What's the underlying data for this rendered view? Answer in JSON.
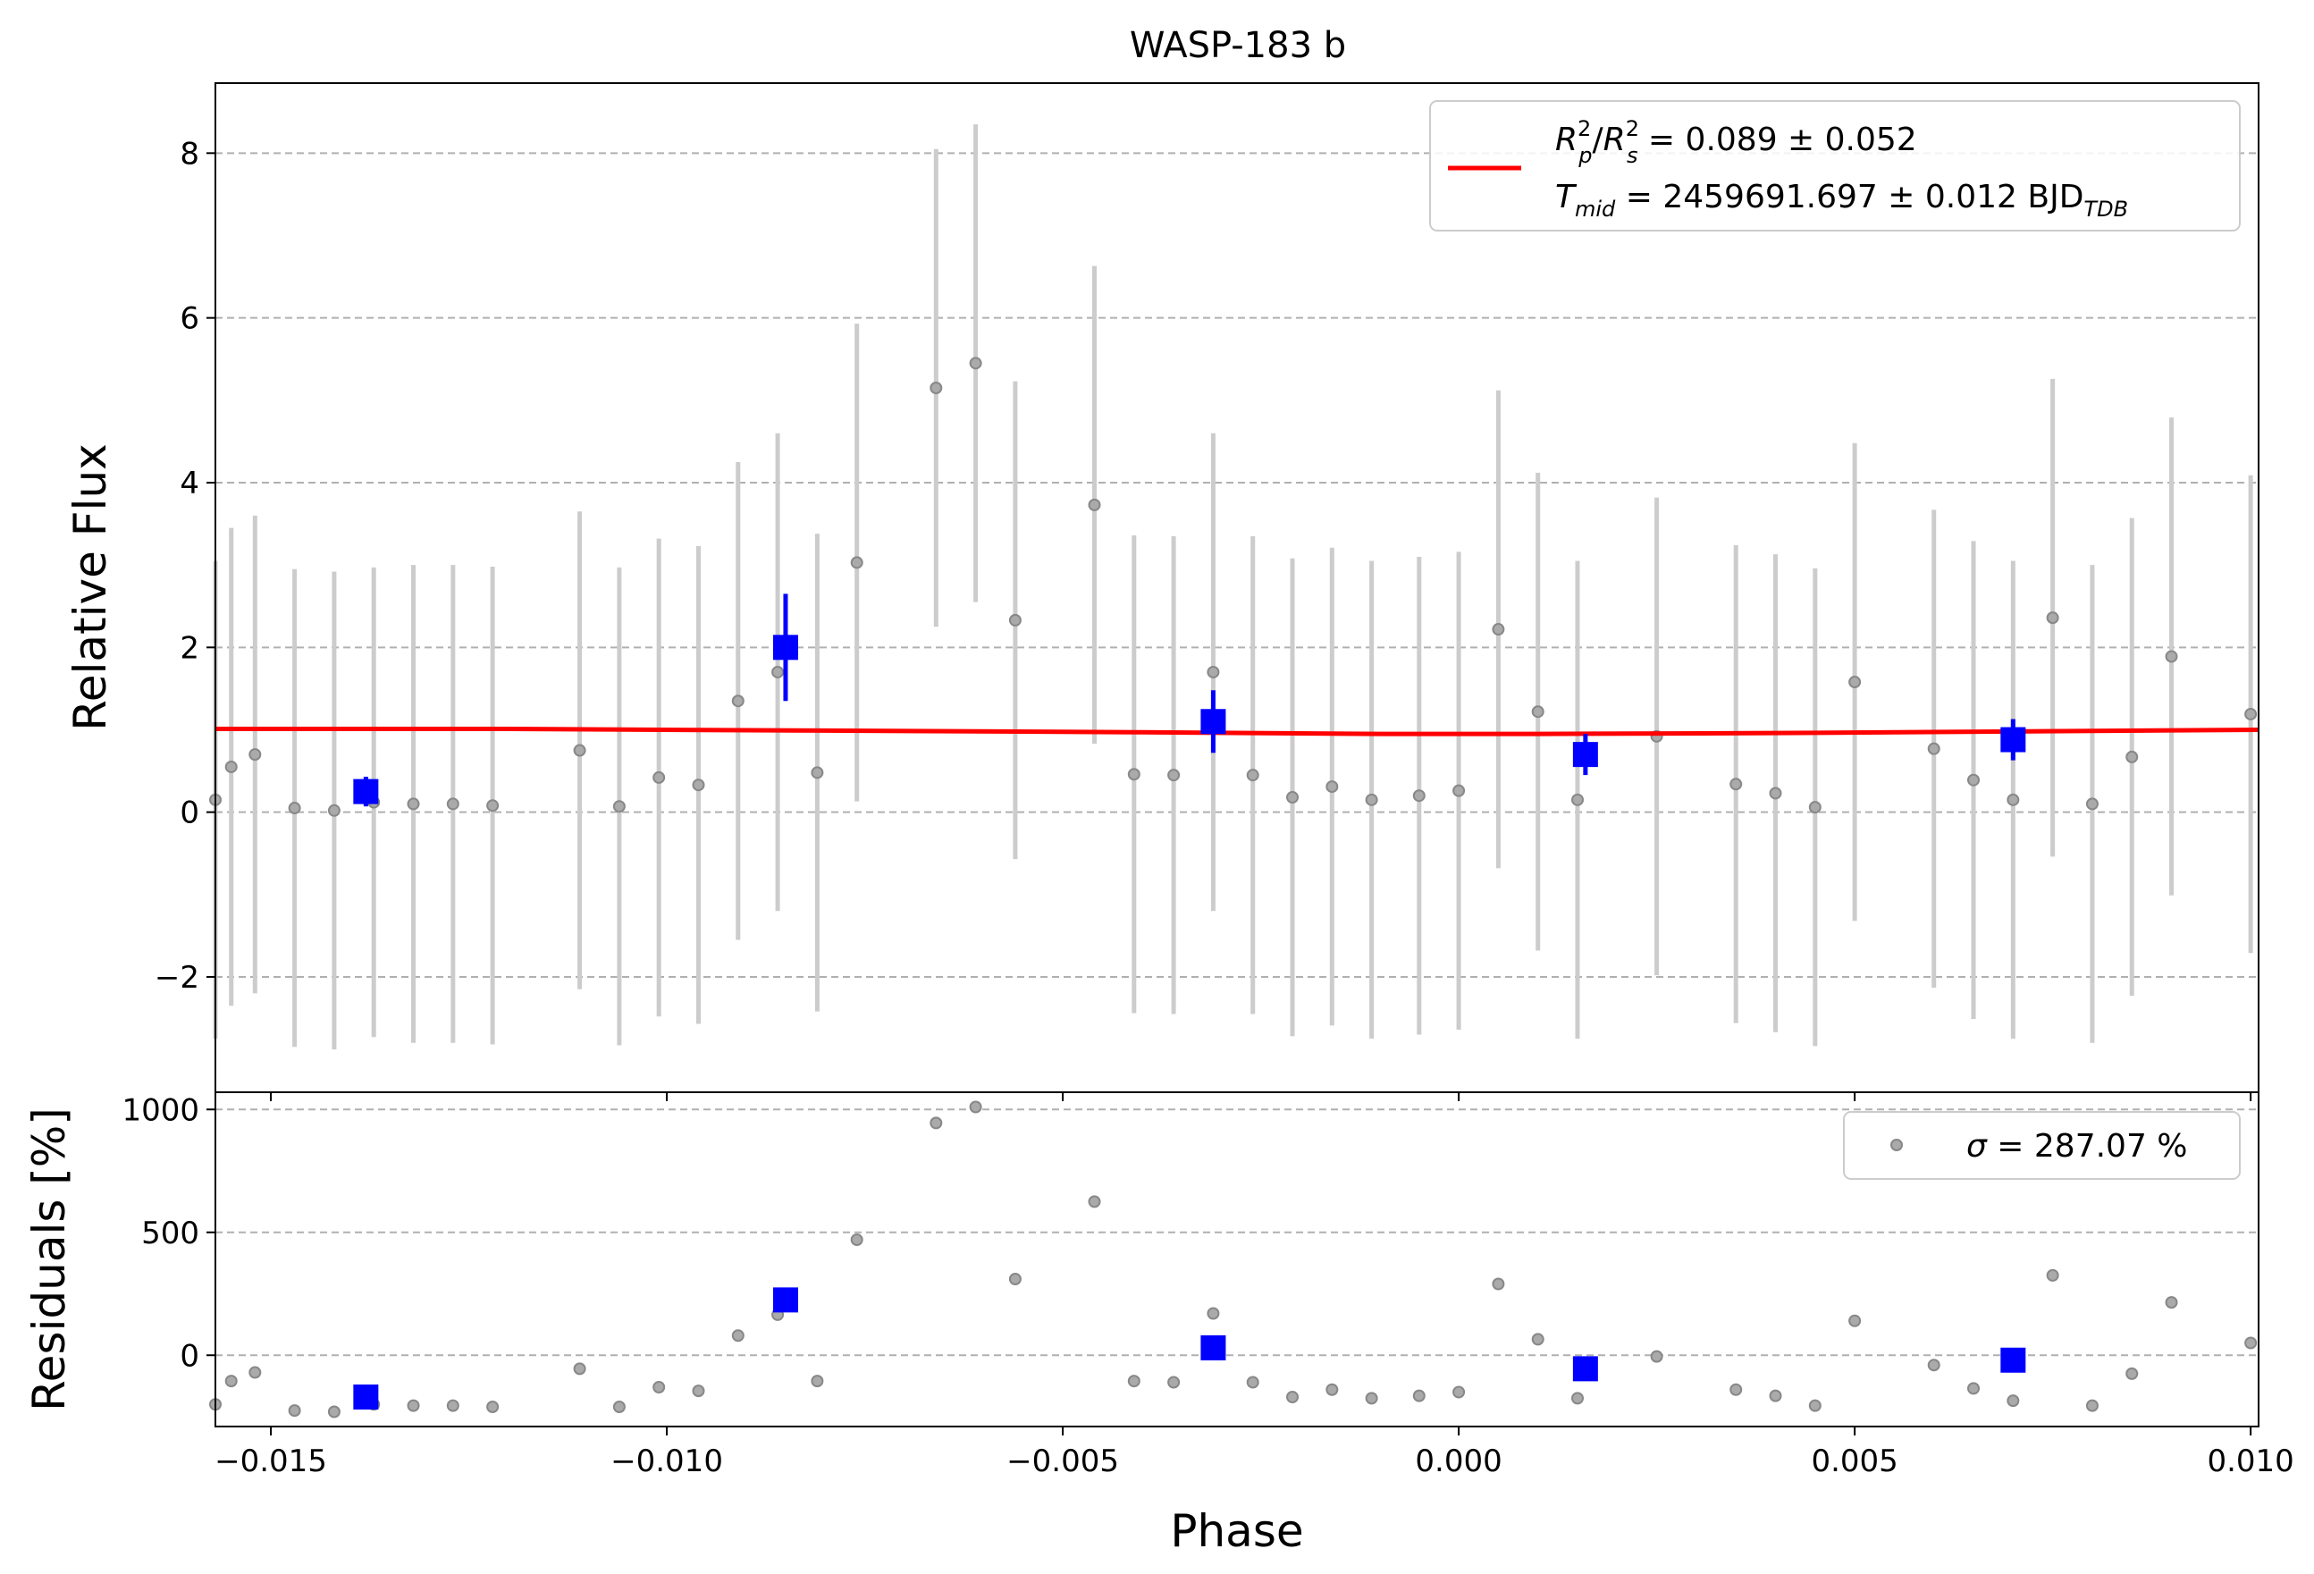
{
  "chart_data": [
    {
      "type": "scatter",
      "title": "WASP-183 b",
      "xlabel": "",
      "ylabel": "Relative Flux",
      "xlim": [
        -0.0157,
        0.0101
      ],
      "ylim": [
        -3.4,
        8.85
      ],
      "grid": "horizontal dashed",
      "xticks": [
        -0.015,
        -0.01,
        -0.005,
        0.0,
        0.005,
        0.01
      ],
      "yticks": [
        -2,
        0,
        2,
        4,
        6,
        8
      ],
      "xtick_labels": [
        "−0.015",
        "−0.010",
        "−0.005",
        "0.000",
        "0.005",
        "0.010"
      ],
      "ytick_labels": [
        "−2",
        "0",
        "2",
        "4",
        "6",
        "8"
      ],
      "legend": {
        "placement": "top-right",
        "rp_symbol": "R",
        "rp_sub": "p",
        "sup2": "2",
        "slash": "/",
        "rs_sub": "s",
        "rp_value": " = 0.089 ± 0.052",
        "t_symbol": "T",
        "t_sub": "mid",
        "t_value": " = 2459691.697 ± 0.012 BJD",
        "t_unit_sub": "TDB",
        "color": "#ff0000"
      },
      "series": [
        {
          "kind": "raw",
          "color": "#888888",
          "x": [
            -0.0157,
            -0.0155,
            -0.0152,
            -0.0147,
            -0.0142,
            -0.0137,
            -0.0132,
            -0.0127,
            -0.0122,
            -0.0111,
            -0.0106,
            -0.0101,
            -0.0096,
            -0.0091,
            -0.0086,
            -0.0081,
            -0.0076,
            -0.0066,
            -0.0061,
            -0.0056,
            -0.0046,
            -0.0041,
            -0.0036,
            -0.0031,
            -0.0026,
            -0.0021,
            -0.0016,
            -0.0011,
            -0.0005,
            0.0,
            0.0005,
            0.001,
            0.0015,
            0.0025,
            0.0035,
            0.004,
            0.0045,
            0.005,
            0.006,
            0.0065,
            0.007,
            0.0075,
            0.008,
            0.0085,
            0.009,
            0.01
          ],
          "y": [
            0.15,
            0.55,
            0.7,
            0.05,
            0.02,
            0.12,
            0.1,
            0.1,
            0.08,
            0.75,
            0.07,
            0.42,
            0.33,
            1.35,
            1.7,
            0.48,
            3.03,
            5.15,
            5.45,
            2.33,
            3.73,
            0.46,
            0.45,
            1.7,
            0.45,
            0.18,
            0.31,
            0.15,
            0.2,
            0.26,
            2.22,
            1.22,
            0.15,
            0.92,
            0.34,
            0.23,
            0.06,
            1.58,
            0.77,
            0.39,
            0.15,
            2.36,
            0.1,
            0.67,
            1.89,
            1.19
          ],
          "yerr": [
            2.9,
            2.9,
            2.9,
            2.9,
            2.9,
            2.85,
            2.9,
            2.9,
            2.9,
            2.9,
            2.9,
            2.9,
            2.9,
            2.9,
            2.9,
            2.9,
            2.9,
            2.9,
            2.9,
            2.9,
            2.9,
            2.9,
            2.9,
            2.9,
            2.9,
            2.9,
            2.9,
            2.9,
            2.9,
            2.9,
            2.9,
            2.9,
            2.9,
            2.9,
            2.9,
            2.9,
            2.9,
            2.9,
            2.9,
            2.9,
            2.9,
            2.9,
            2.9,
            2.9,
            2.9,
            2.9
          ]
        },
        {
          "kind": "binned",
          "color": "#0000ff",
          "x": [
            -0.0138,
            -0.0085,
            -0.0031,
            0.0016,
            0.007
          ],
          "y": [
            0.25,
            2.0,
            1.1,
            0.7,
            0.88
          ],
          "yerr": [
            0.18,
            0.65,
            0.38,
            0.25,
            0.25
          ]
        },
        {
          "kind": "model",
          "color": "#ff0000",
          "x": [
            -0.0157,
            -0.012,
            -0.008,
            -0.004,
            -0.001,
            0.001,
            0.004,
            0.007,
            0.0101
          ],
          "y": [
            1.01,
            1.01,
            0.99,
            0.97,
            0.95,
            0.95,
            0.96,
            0.98,
            1.0
          ]
        }
      ]
    },
    {
      "type": "scatter",
      "title": "",
      "xlabel": "Phase",
      "ylabel": "Residuals [%]",
      "xlim": [
        -0.0157,
        0.0101
      ],
      "ylim": [
        -290,
        1070
      ],
      "grid": "horizontal dashed",
      "yticks": [
        0,
        500,
        1000
      ],
      "ytick_labels": [
        "0",
        "500",
        "1000"
      ],
      "legend": {
        "placement": "top-right",
        "sigma_symbol": "σ",
        "text": " = 287.07 %"
      },
      "series": [
        {
          "kind": "raw",
          "color": "#888888",
          "x": [
            -0.0157,
            -0.0155,
            -0.0152,
            -0.0147,
            -0.0142,
            -0.0137,
            -0.0132,
            -0.0127,
            -0.0122,
            -0.0111,
            -0.0106,
            -0.0101,
            -0.0096,
            -0.0091,
            -0.0086,
            -0.0081,
            -0.0076,
            -0.0066,
            -0.0061,
            -0.0056,
            -0.0046,
            -0.0041,
            -0.0036,
            -0.0031,
            -0.0026,
            -0.0021,
            -0.0016,
            -0.0011,
            -0.0005,
            0.0,
            0.0005,
            0.001,
            0.0015,
            0.0025,
            0.0035,
            0.004,
            0.0045,
            0.005,
            0.006,
            0.0065,
            0.007,
            0.0075,
            0.008,
            0.0085,
            0.009,
            0.01
          ],
          "y": [
            -200,
            -105,
            -70,
            -225,
            -230,
            -200,
            -205,
            -205,
            -210,
            -55,
            -210,
            -130,
            -145,
            80,
            165,
            -105,
            470,
            945,
            1010,
            310,
            625,
            -105,
            -110,
            170,
            -110,
            -170,
            -140,
            -175,
            -165,
            -150,
            290,
            65,
            -175,
            -5,
            -140,
            -165,
            -205,
            140,
            -40,
            -135,
            -185,
            325,
            -205,
            -75,
            215,
            50
          ]
        },
        {
          "kind": "binned",
          "color": "#0000ff",
          "x": [
            -0.0138,
            -0.0085,
            -0.0031,
            0.0016,
            0.007
          ],
          "y": [
            -170,
            225,
            30,
            -55,
            -20
          ]
        }
      ]
    }
  ]
}
